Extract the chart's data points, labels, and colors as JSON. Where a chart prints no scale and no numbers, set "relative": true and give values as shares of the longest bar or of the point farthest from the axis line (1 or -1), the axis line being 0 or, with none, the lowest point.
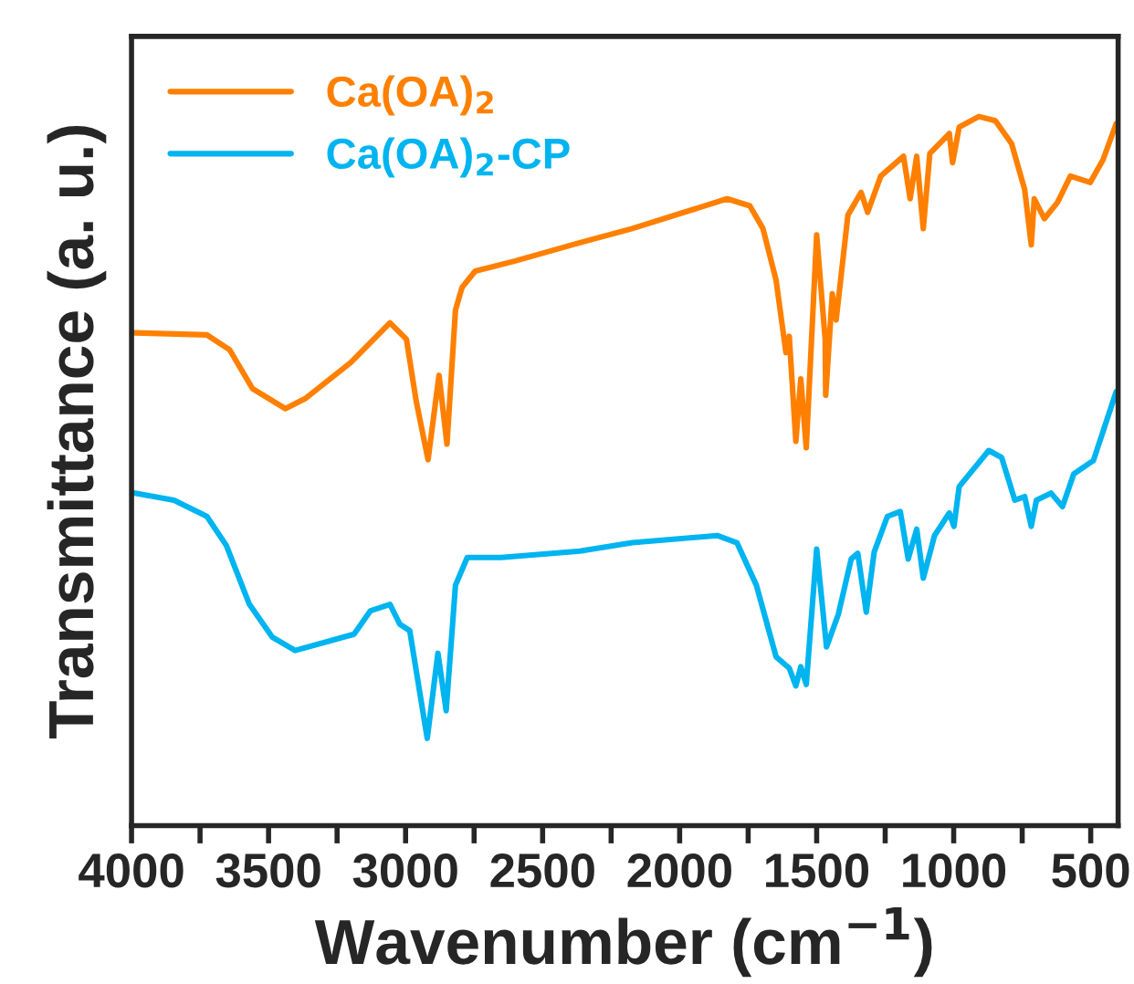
{
  "chart_data": {
    "type": "line",
    "relative": true,
    "xlabel": "Wavenumber (cm$^{−1}$)",
    "ylabel": "Transmittance (a. u.)",
    "xlim": [
      4000,
      400
    ],
    "xticks": [
      4000,
      {
        "value": 3750,
        "label": null
      },
      3500,
      {
        "value": 3250,
        "label": null
      },
      3000,
      {
        "value": 2750,
        "label": null
      },
      2500,
      {
        "value": 2250,
        "label": null
      },
      2000,
      {
        "value": 1750,
        "label": null
      },
      1500,
      {
        "value": 1250,
        "label": null
      },
      1000,
      {
        "value": 750,
        "label": null
      },
      500
    ],
    "legend": "top left",
    "grid": false,
    "marker": "none",
    "line_style": "solid",
    "tick_labels": "x",
    "series": [
      {
        "name": "Ca(OA)$_{2}$",
        "color": "#ff8000",
        "x": [
          3988,
          3725,
          3642,
          3558,
          3439,
          3367,
          3200,
          3057,
          2997,
          2961,
          2918,
          2878,
          2849,
          2818,
          2794,
          2746,
          2603,
          2364,
          2173,
          1983,
          1827,
          1744,
          1696,
          1648,
          1612,
          1600,
          1576,
          1558,
          1538,
          1500,
          1469,
          1467,
          1443,
          1429,
          1386,
          1338,
          1314,
          1266,
          1183,
          1159,
          1135,
          1111,
          1087,
          1016,
          1004,
          980,
          908,
          848,
          789,
          741,
          717,
          706,
          669,
          621,
          574,
          502,
          455,
          407
        ],
        "values": [
          0.695,
          0.692,
          0.671,
          0.616,
          0.588,
          0.602,
          0.653,
          0.709,
          0.686,
          0.598,
          0.516,
          0.635,
          0.538,
          0.727,
          0.759,
          0.782,
          0.796,
          0.822,
          0.842,
          0.865,
          0.884,
          0.874,
          0.842,
          0.769,
          0.667,
          0.69,
          0.542,
          0.63,
          0.533,
          0.833,
          0.686,
          0.607,
          0.75,
          0.713,
          0.861,
          0.893,
          0.865,
          0.916,
          0.944,
          0.884,
          0.944,
          0.842,
          0.948,
          0.976,
          0.935,
          0.985,
          1.0,
          0.994,
          0.962,
          0.897,
          0.819,
          0.884,
          0.856,
          0.879,
          0.916,
          0.907,
          0.939,
          0.99
        ]
      },
      {
        "name": "Ca(OA)$_{2}$-CP",
        "color": "#00b4f0",
        "x": [
          3988,
          3845,
          3725,
          3654,
          3570,
          3487,
          3403,
          3272,
          3188,
          3128,
          3057,
          3021,
          2985,
          2921,
          2882,
          2852,
          2818,
          2775,
          2651,
          2364,
          2173,
          1863,
          1791,
          1720,
          1648,
          1600,
          1576,
          1558,
          1538,
          1500,
          1464,
          1421,
          1374,
          1350,
          1319,
          1290,
          1242,
          1195,
          1166,
          1135,
          1111,
          1070,
          1016,
          999,
          980,
          872,
          825,
          777,
          741,
          717,
          698,
          645,
          603,
          562,
          490,
          443,
          407
        ],
        "values": [
          0.469,
          0.459,
          0.436,
          0.395,
          0.312,
          0.266,
          0.247,
          0.261,
          0.27,
          0.303,
          0.312,
          0.284,
          0.275,
          0.123,
          0.243,
          0.162,
          0.339,
          0.378,
          0.378,
          0.387,
          0.399,
          0.409,
          0.399,
          0.339,
          0.238,
          0.222,
          0.197,
          0.224,
          0.199,
          0.39,
          0.252,
          0.298,
          0.376,
          0.384,
          0.301,
          0.386,
          0.436,
          0.443,
          0.376,
          0.418,
          0.349,
          0.409,
          0.441,
          0.422,
          0.478,
          0.529,
          0.519,
          0.459,
          0.464,
          0.422,
          0.459,
          0.469,
          0.45,
          0.496,
          0.515,
          0.57,
          0.612
        ]
      }
    ]
  }
}
